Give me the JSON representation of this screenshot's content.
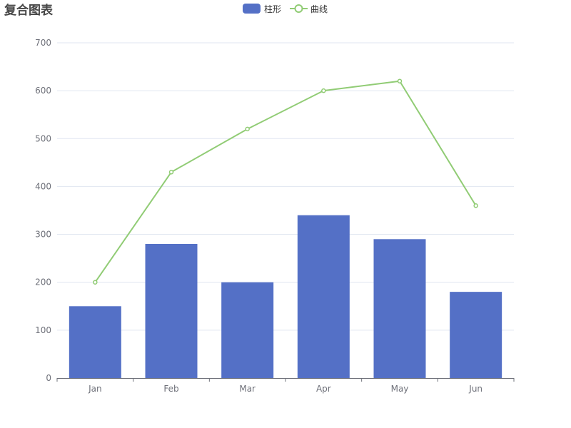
{
  "chart_data": {
    "type": "bar",
    "title": "复合图表",
    "categories": [
      "Jan",
      "Feb",
      "Mar",
      "Apr",
      "May",
      "Jun"
    ],
    "series": [
      {
        "name": "柱形",
        "type": "bar",
        "color": "#5470c6",
        "values": [
          150,
          280,
          200,
          340,
          290,
          180
        ]
      },
      {
        "name": "曲线",
        "type": "line",
        "color": "#91cc75",
        "values": [
          200,
          430,
          520,
          600,
          620,
          360
        ]
      }
    ],
    "ylim": [
      0,
      700
    ],
    "yticks": [
      0,
      100,
      200,
      300,
      400,
      500,
      600,
      700
    ],
    "grid": true,
    "legend_position": "top-center"
  }
}
